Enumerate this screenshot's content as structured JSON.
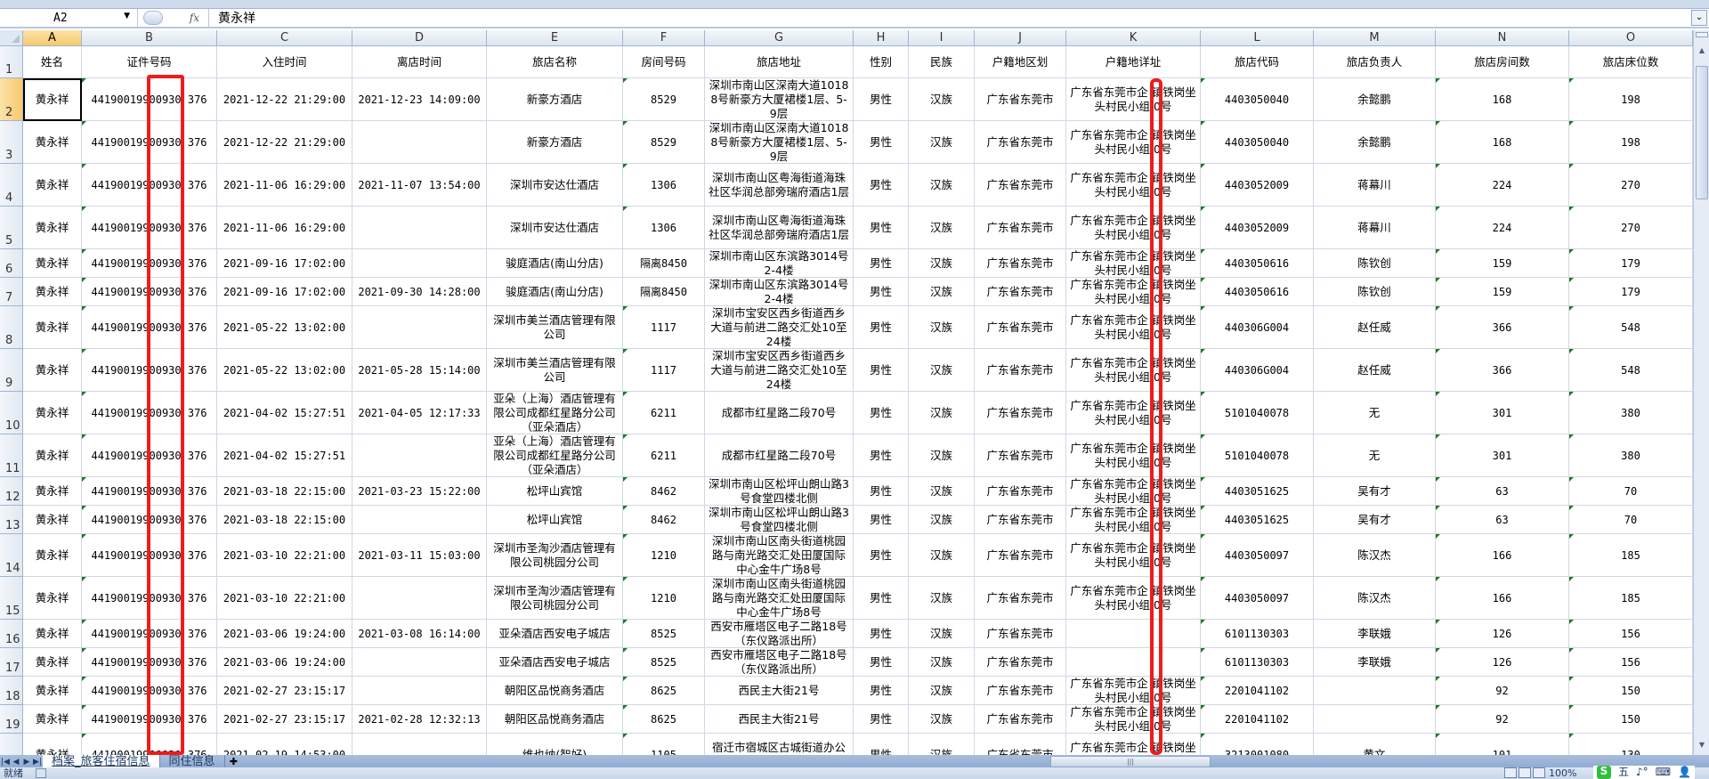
{
  "formula_bar": {
    "name_box": "A2",
    "fx_label": "fx",
    "value": "黄永祥"
  },
  "columns": [
    "A",
    "B",
    "C",
    "D",
    "E",
    "F",
    "G",
    "H",
    "I",
    "J",
    "K",
    "L",
    "M",
    "N",
    "O"
  ],
  "selected_cell": "A2",
  "headers": [
    "姓名",
    "证件号码",
    "入住时间",
    "离店时间",
    "旅店名称",
    "房间号码",
    "旅店地址",
    "性别",
    "民族",
    "户籍地区划",
    "户籍地详址",
    "旅店代码",
    "旅店负责人",
    "旅店房间数",
    "旅店床位数"
  ],
  "rows": [
    [
      "黄永祥",
      "44190019900930 376",
      "2021-12-22 21:29:00",
      "2021-12-23 14:09:00",
      "新豪方酒店",
      "8529",
      "深圳市南山区深南大道10188号新豪方大厦裙楼1层、5-9层",
      "男性",
      "汉族",
      "广东省东莞市",
      "广东省东莞市企 镇铁岗坐头村民小组 0号",
      "4403050040",
      "余懿鹏",
      "168",
      "198"
    ],
    [
      "黄永祥",
      "44190019900930 376",
      "2021-12-22 21:29:00",
      "",
      "新豪方酒店",
      "8529",
      "深圳市南山区深南大道10188号新豪方大厦裙楼1层、5-9层",
      "男性",
      "汉族",
      "广东省东莞市",
      "广东省东莞市企 镇铁岗坐头村民小组 0号",
      "4403050040",
      "余懿鹏",
      "168",
      "198"
    ],
    [
      "黄永祥",
      "44190019900930 376",
      "2021-11-06 16:29:00",
      "2021-11-07 13:54:00",
      "深圳市安达仕酒店",
      "1306",
      "深圳市南山区粤海街道海珠社区华润总部旁瑞府酒店1层",
      "男性",
      "汉族",
      "广东省东莞市",
      "广东省东莞市企 镇铁岗坐头村民小组 0号",
      "4403052009",
      "蒋幕川",
      "224",
      "270"
    ],
    [
      "黄永祥",
      "44190019900930 376",
      "2021-11-06 16:29:00",
      "",
      "深圳市安达仕酒店",
      "1306",
      "深圳市南山区粤海街道海珠社区华润总部旁瑞府酒店1层",
      "男性",
      "汉族",
      "广东省东莞市",
      "广东省东莞市企 镇铁岗坐头村民小组 0号",
      "4403052009",
      "蒋幕川",
      "224",
      "270"
    ],
    [
      "黄永祥",
      "44190019900930 376",
      "2021-09-16 17:02:00",
      "",
      "骏庭酒店(南山分店)",
      "隔离8450",
      "深圳市南山区东滨路3014号2-4楼",
      "男性",
      "汉族",
      "广东省东莞市",
      "广东省东莞市企 镇铁岗坐头村民小组 0号",
      "4403050616",
      "陈钦创",
      "159",
      "179"
    ],
    [
      "黄永祥",
      "44190019900930 376",
      "2021-09-16 17:02:00",
      "2021-09-30 14:28:00",
      "骏庭酒店(南山分店)",
      "隔离8450",
      "深圳市南山区东滨路3014号2-4楼",
      "男性",
      "汉族",
      "广东省东莞市",
      "广东省东莞市企 镇铁岗坐头村民小组 0号",
      "4403050616",
      "陈钦创",
      "159",
      "179"
    ],
    [
      "黄永祥",
      "44190019900930 376",
      "2021-05-22 13:02:00",
      "",
      "深圳市美兰酒店管理有限公司",
      "1117",
      "深圳市宝安区西乡街道西乡大道与前进二路交汇处10至24楼",
      "男性",
      "汉族",
      "广东省东莞市",
      "广东省东莞市企 镇铁岗坐头村民小组 0号",
      "440306G004",
      "赵任威",
      "366",
      "548"
    ],
    [
      "黄永祥",
      "44190019900930 376",
      "2021-05-22 13:02:00",
      "2021-05-28 15:14:00",
      "深圳市美兰酒店管理有限公司",
      "1117",
      "深圳市宝安区西乡街道西乡大道与前进二路交汇处10至24楼",
      "男性",
      "汉族",
      "广东省东莞市",
      "广东省东莞市企 镇铁岗坐头村民小组 0号",
      "440306G004",
      "赵任威",
      "366",
      "548"
    ],
    [
      "黄永祥",
      "44190019900930 376",
      "2021-04-02 15:27:51",
      "2021-04-05 12:17:33",
      "亚朵（上海）酒店管理有限公司成都红星路分公司（亚朵酒店）",
      "6211",
      "成都市红星路二段70号",
      "男性",
      "汉族",
      "广东省东莞市",
      "广东省东莞市企 镇铁岗坐头村民小组 0号",
      "5101040078",
      "无",
      "301",
      "380"
    ],
    [
      "黄永祥",
      "44190019900930 376",
      "2021-04-02 15:27:51",
      "",
      "亚朵（上海）酒店管理有限公司成都红星路分公司（亚朵酒店）",
      "6211",
      "成都市红星路二段70号",
      "男性",
      "汉族",
      "广东省东莞市",
      "广东省东莞市企 镇铁岗坐头村民小组 0号",
      "5101040078",
      "无",
      "301",
      "380"
    ],
    [
      "黄永祥",
      "44190019900930 376",
      "2021-03-18 22:15:00",
      "2021-03-23 15:22:00",
      "松坪山宾馆",
      "8462",
      "深圳市南山区松坪山朗山路3号食堂四楼北侧",
      "男性",
      "汉族",
      "广东省东莞市",
      "广东省东莞市企 镇铁岗坐头村民小组 0号",
      "4403051625",
      "吴有才",
      "63",
      "70"
    ],
    [
      "黄永祥",
      "44190019900930 376",
      "2021-03-18 22:15:00",
      "",
      "松坪山宾馆",
      "8462",
      "深圳市南山区松坪山朗山路3号食堂四楼北侧",
      "男性",
      "汉族",
      "广东省东莞市",
      "广东省东莞市企 镇铁岗坐头村民小组 0号",
      "4403051625",
      "吴有才",
      "63",
      "70"
    ],
    [
      "黄永祥",
      "44190019900930 376",
      "2021-03-10 22:21:00",
      "2021-03-11 15:03:00",
      "深圳市圣淘沙酒店管理有限公司桃园分公司",
      "1210",
      "深圳市南山区南头街道桃园路与南光路交汇处田厦国际中心金牛广场8号",
      "男性",
      "汉族",
      "广东省东莞市",
      "广东省东莞市企 镇铁岗坐头村民小组 0号",
      "4403050097",
      "陈汉杰",
      "166",
      "185"
    ],
    [
      "黄永祥",
      "44190019900930 376",
      "2021-03-10 22:21:00",
      "",
      "深圳市圣淘沙酒店管理有限公司桃园分公司",
      "1210",
      "深圳市南山区南头街道桃园路与南光路交汇处田厦国际中心金牛广场8号",
      "男性",
      "汉族",
      "广东省东莞市",
      "广东省东莞市企 镇铁岗坐头村民小组 0号",
      "4403050097",
      "陈汉杰",
      "166",
      "185"
    ],
    [
      "黄永祥",
      "44190019900930 376",
      "2021-03-06 19:24:00",
      "2021-03-08 16:14:00",
      "亚朵酒店西安电子城店",
      "8525",
      "西安市雁塔区电子二路18号（东仪路派出所）",
      "男性",
      "汉族",
      "广东省东莞市",
      "",
      "6101130303",
      "李联娥",
      "126",
      "156"
    ],
    [
      "黄永祥",
      "44190019900930 376",
      "2021-03-06 19:24:00",
      "",
      "亚朵酒店西安电子城店",
      "8525",
      "西安市雁塔区电子二路18号（东仪路派出所）",
      "男性",
      "汉族",
      "广东省东莞市",
      "",
      "6101130303",
      "李联娥",
      "126",
      "156"
    ],
    [
      "黄永祥",
      "44190019900930 376",
      "2021-02-27 23:15:17",
      "",
      "朝阳区品悦商务酒店",
      "8625",
      "西民主大街21号",
      "男性",
      "汉族",
      "广东省东莞市",
      "广东省东莞市企 镇铁岗坐头村民小组 0号",
      "2201041102",
      "",
      "92",
      "150"
    ],
    [
      "黄永祥",
      "44190019900930 376",
      "2021-02-27 23:15:17",
      "2021-02-28 12:32:13",
      "朝阳区品悦商务酒店",
      "8625",
      "西民主大街21号",
      "男性",
      "汉族",
      "广东省东莞市",
      "广东省东莞市企 镇铁岗坐头村民小组 0号",
      "2201041102",
      "",
      "92",
      "150"
    ],
    [
      "黄永祥",
      "44190019900930 376",
      "2021-02-19 14:53:00",
      "",
      "维也纳(智好)",
      "1105",
      "宿迁市宿城区古城街道办公大楼（地上北一层、地",
      "男性",
      "汉族",
      "广东省东莞市",
      "广东省东莞市企 镇铁岗坐头村民小组 0号",
      "3213001080",
      "黄文",
      "101",
      "130"
    ]
  ],
  "sheet_tabs": [
    {
      "label": "档案_旅客住宿信息",
      "active": true
    },
    {
      "label": "同住信息",
      "active": false
    }
  ],
  "status_bar": {
    "ready": "就绪",
    "zoom": "100%",
    "ime": [
      "S",
      "五"
    ]
  },
  "colors": {
    "highlight_box": "#ee1c1c",
    "selected_header": "#f7c86e",
    "comment_marker": "#1f7a1f"
  }
}
